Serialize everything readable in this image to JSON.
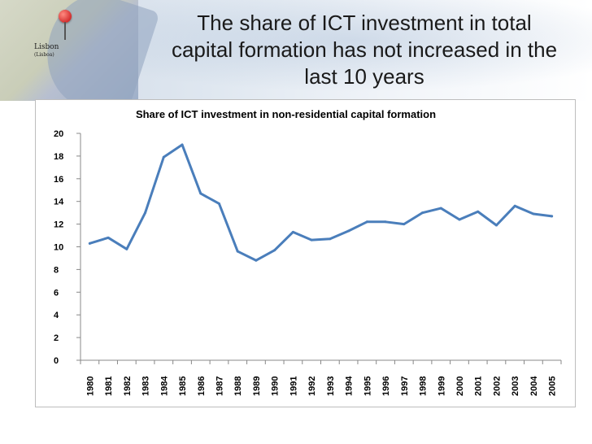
{
  "slide": {
    "title": "The share of ICT investment in total capital formation has not increased in the last 10 years",
    "title_lines": [
      "The share of ICT investment in total",
      "capital formation has not increased in the",
      "last 10 years"
    ],
    "map_label": "Lisbon",
    "map_sublabel": "(Lisboa)"
  },
  "chart_data": {
    "type": "line",
    "title": "Share of ICT investment in non-residential capital formation",
    "xlabel": "",
    "ylabel": "",
    "ylim": [
      0,
      20
    ],
    "yticks": [
      0,
      2,
      4,
      6,
      8,
      10,
      12,
      14,
      16,
      18,
      20
    ],
    "grid": false,
    "legend": "none",
    "categories": [
      "1980",
      "1981",
      "1982",
      "1983",
      "1984",
      "1985",
      "1986",
      "1987",
      "1988",
      "1989",
      "1990",
      "1991",
      "1992",
      "1993",
      "1994",
      "1995",
      "1996",
      "1997",
      "1998",
      "1999",
      "2000",
      "2001",
      "2002",
      "2003",
      "2004",
      "2005"
    ],
    "series": [
      {
        "values": [
          10.3,
          10.8,
          9.8,
          13.0,
          17.9,
          19.0,
          14.7,
          13.8,
          9.6,
          8.8,
          9.7,
          11.3,
          10.6,
          10.7,
          11.4,
          12.2,
          12.2,
          12.0,
          13.0,
          13.4,
          12.4,
          13.1,
          11.9,
          13.6,
          12.9,
          12.7
        ],
        "color": "#4a7ebb"
      }
    ]
  }
}
